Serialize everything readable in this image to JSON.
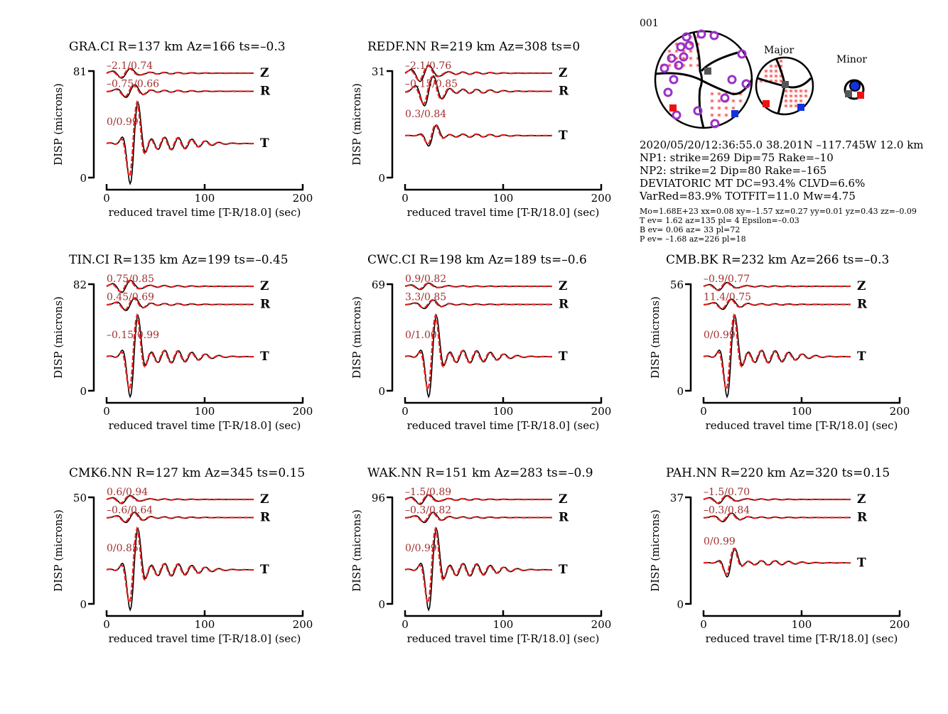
{
  "event_id": "001",
  "event_info": [
    "2020/05/20/12:36:55.0 38.201N –117.745W 12.0 km",
    "NP1: strike=269 Dip=75 Rake=–10",
    "NP2: strike=2 Dip=80 Rake=–165",
    "DEVIATORIC MT DC=93.4% CLVD=6.6%",
    "VarRed=83.9% TOTFIT=11.0 Mw=4.75"
  ],
  "mt_details": [
    "Mo=1.68E+23 xx=0.08 xy=–1.57 xz=0.27 yy=0.01 yz=0.43 zz=–0.09",
    "T ev=  1.62 az=135 pl= 4 Epsilon=–0.03",
    "B ev=  0.06 az= 33 pl=72",
    "P ev= –1.68 az=226 pl=18"
  ],
  "beachball_labels": {
    "major": "Major",
    "minor": "Minor"
  },
  "colors": {
    "observed": "#000000",
    "synthetic": "#e8201e",
    "fit_label": "#a03030",
    "polarity": "#9b30c8",
    "t_axis": "#ee1111",
    "p_axis": "#1133dd",
    "b_axis": "#555555"
  },
  "chart_data": [
    {
      "type": "line",
      "title": "GRA.CI R=137 km Az=166 ts=–0.3",
      "xlabel": "reduced travel time [T-R/18.0] (sec)",
      "ylabel": "DISP (microns)",
      "xlim": [
        0,
        200
      ],
      "xticks": [
        "0",
        "100",
        "200"
      ],
      "ytop": "81",
      "ybottom": "0",
      "traces": [
        {
          "component": "Z",
          "label": "–2.1/0.74"
        },
        {
          "component": "R",
          "label": "–0.75/0.66"
        },
        {
          "component": "T",
          "label": "0/0.99"
        }
      ]
    },
    {
      "type": "line",
      "title": "REDF.NN R=219 km Az=308 ts=0",
      "xlabel": "reduced travel time [T-R/18.0] (sec)",
      "ylabel": "DISP (microns)",
      "xlim": [
        0,
        200
      ],
      "xticks": [
        "0",
        "100",
        "200"
      ],
      "ytop": "31",
      "ybottom": "0",
      "traces": [
        {
          "component": "Z",
          "label": "–2.1/0.76"
        },
        {
          "component": "R",
          "label": "–0.15/0.85"
        },
        {
          "component": "T",
          "label": "0.3/0.84"
        }
      ]
    },
    {
      "type": "line",
      "title": "TIN.CI R=135 km Az=199 ts=–0.45",
      "xlabel": "reduced travel time [T-R/18.0] (sec)",
      "ylabel": "DISP (microns)",
      "xlim": [
        0,
        200
      ],
      "xticks": [
        "0",
        "100",
        "200"
      ],
      "ytop": "82",
      "ybottom": "0",
      "traces": [
        {
          "component": "Z",
          "label": "0.75/0.85"
        },
        {
          "component": "R",
          "label": "0.45/0.69"
        },
        {
          "component": "T",
          "label": "–0.15/0.99"
        }
      ]
    },
    {
      "type": "line",
      "title": "CWC.CI R=198 km Az=189 ts=–0.6",
      "xlabel": "reduced travel time [T-R/18.0] (sec)",
      "ylabel": "DISP (microns)",
      "xlim": [
        0,
        200
      ],
      "xticks": [
        "0",
        "100",
        "200"
      ],
      "ytop": "69",
      "ybottom": "0",
      "traces": [
        {
          "component": "Z",
          "label": "0.9/0.82"
        },
        {
          "component": "R",
          "label": "3.3/0.85"
        },
        {
          "component": "T",
          "label": "0/1.00"
        }
      ]
    },
    {
      "type": "line",
      "title": "CMB.BK R=232 km Az=266 ts=–0.3",
      "xlabel": "reduced travel time [T-R/18.0] (sec)",
      "ylabel": "DISP (microns)",
      "xlim": [
        0,
        200
      ],
      "xticks": [
        "0",
        "100",
        "200"
      ],
      "ytop": "56",
      "ybottom": "0",
      "traces": [
        {
          "component": "Z",
          "label": "–0.9/0.77"
        },
        {
          "component": "R",
          "label": "11.4/0.75"
        },
        {
          "component": "T",
          "label": "0/0.99"
        }
      ]
    },
    {
      "type": "line",
      "title": "CMK6.NN R=127 km Az=345 ts=0.15",
      "xlabel": "reduced travel time [T-R/18.0] (sec)",
      "ylabel": "DISP (microns)",
      "xlim": [
        0,
        200
      ],
      "xticks": [
        "0",
        "100",
        "200"
      ],
      "ytop": "50",
      "ybottom": "0",
      "traces": [
        {
          "component": "Z",
          "label": "0.6/0.94"
        },
        {
          "component": "R",
          "label": "–0.6/0.64"
        },
        {
          "component": "T",
          "label": "0/0.85"
        }
      ]
    },
    {
      "type": "line",
      "title": "WAK.NN R=151 km Az=283 ts=–0.9",
      "xlabel": "reduced travel time [T-R/18.0] (sec)",
      "ylabel": "DISP (microns)",
      "xlim": [
        0,
        200
      ],
      "xticks": [
        "0",
        "100",
        "200"
      ],
      "ytop": "96",
      "ybottom": "0",
      "traces": [
        {
          "component": "Z",
          "label": "–1.5/0.89"
        },
        {
          "component": "R",
          "label": "–0.3/0.82"
        },
        {
          "component": "T",
          "label": "0/0.99"
        }
      ]
    },
    {
      "type": "line",
      "title": "PAH.NN R=220 km Az=320 ts=0.15",
      "xlabel": "reduced travel time [T-R/18.0] (sec)",
      "ylabel": "DISP (microns)",
      "xlim": [
        0,
        200
      ],
      "xticks": [
        "0",
        "100",
        "200"
      ],
      "ytop": "37",
      "ybottom": "0",
      "traces": [
        {
          "component": "Z",
          "label": "–1.5/0.70"
        },
        {
          "component": "R",
          "label": "–0.3/0.84"
        },
        {
          "component": "T",
          "label": "0/0.99"
        }
      ]
    }
  ]
}
